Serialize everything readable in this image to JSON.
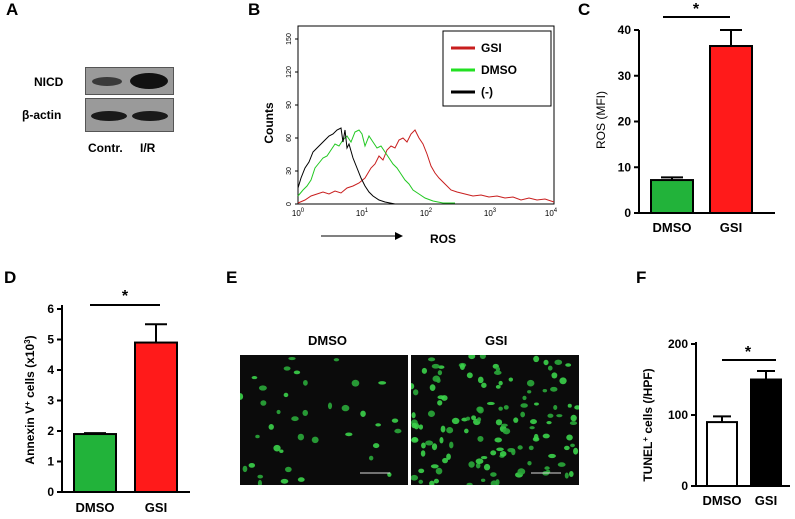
{
  "panels": {
    "A": {
      "label": "A",
      "rows": [
        "NICD",
        "β-actin"
      ],
      "lanes": [
        "Contr.",
        "I/R"
      ]
    },
    "B": {
      "label": "B",
      "ylabel": "Counts",
      "xlabel": "ROS",
      "yticks": [
        "0",
        "30",
        "60",
        "90",
        "120",
        "150"
      ],
      "xticks": [
        "10",
        "10",
        "10",
        "10",
        "10"
      ],
      "xtick_exps": [
        "0",
        "1",
        "2",
        "3",
        "4"
      ],
      "legend": [
        {
          "label": "GSI",
          "color": "#c81e1e"
        },
        {
          "label": "DMSO",
          "color": "#22c822"
        },
        {
          "label": "(-)",
          "color": "#000000"
        }
      ]
    },
    "C": {
      "label": "C",
      "ylabel": "ROS (MFI)",
      "yticks": [
        "0",
        "10",
        "20",
        "30",
        "40"
      ],
      "categories": [
        "DMSO",
        "GSI"
      ],
      "sig": "*"
    },
    "D": {
      "label": "D",
      "ylabel": "Annexin V",
      "ylabel_sup": "+",
      "ylabel_tail": " cells (x10",
      "ylabel_sup2": "3",
      "ylabel_end": ")",
      "yticks": [
        "0",
        "1",
        "2",
        "3",
        "4",
        "5",
        "6"
      ],
      "categories": [
        "DMSO",
        "GSI"
      ],
      "sig": "*"
    },
    "E": {
      "label": "E",
      "images": [
        "DMSO",
        "GSI"
      ]
    },
    "F": {
      "label": "F",
      "ylabel": "TUNEL",
      "ylabel_sup": "+",
      "ylabel_tail": " cells (/HPF)",
      "yticks": [
        "0",
        "100",
        "200"
      ],
      "categories": [
        "DMSO",
        "GSI"
      ],
      "sig": "*"
    }
  },
  "chart_data": [
    {
      "panel": "C",
      "type": "bar",
      "categories": [
        "DMSO",
        "GSI"
      ],
      "values": [
        7.2,
        36.5
      ],
      "errors": [
        0.6,
        3.5
      ],
      "colors": [
        "#22b33a",
        "#ff1a1a"
      ],
      "ylabel": "ROS (MFI)",
      "ylim": [
        0,
        40
      ]
    },
    {
      "panel": "D",
      "type": "bar",
      "categories": [
        "DMSO",
        "GSI"
      ],
      "values": [
        1.9,
        4.9
      ],
      "errors": [
        0.03,
        0.6
      ],
      "colors": [
        "#22b33a",
        "#ff1a1a"
      ],
      "ylabel": "Annexin V+ cells (x10³)",
      "ylim": [
        0,
        6
      ]
    },
    {
      "panel": "F",
      "type": "bar",
      "categories": [
        "DMSO",
        "GSI"
      ],
      "values": [
        90,
        150
      ],
      "errors": [
        8,
        12
      ],
      "colors": [
        "#ffffff",
        "#000000"
      ],
      "ylabel": "TUNEL+ cells (/HPF)",
      "ylim": [
        0,
        200
      ]
    }
  ]
}
